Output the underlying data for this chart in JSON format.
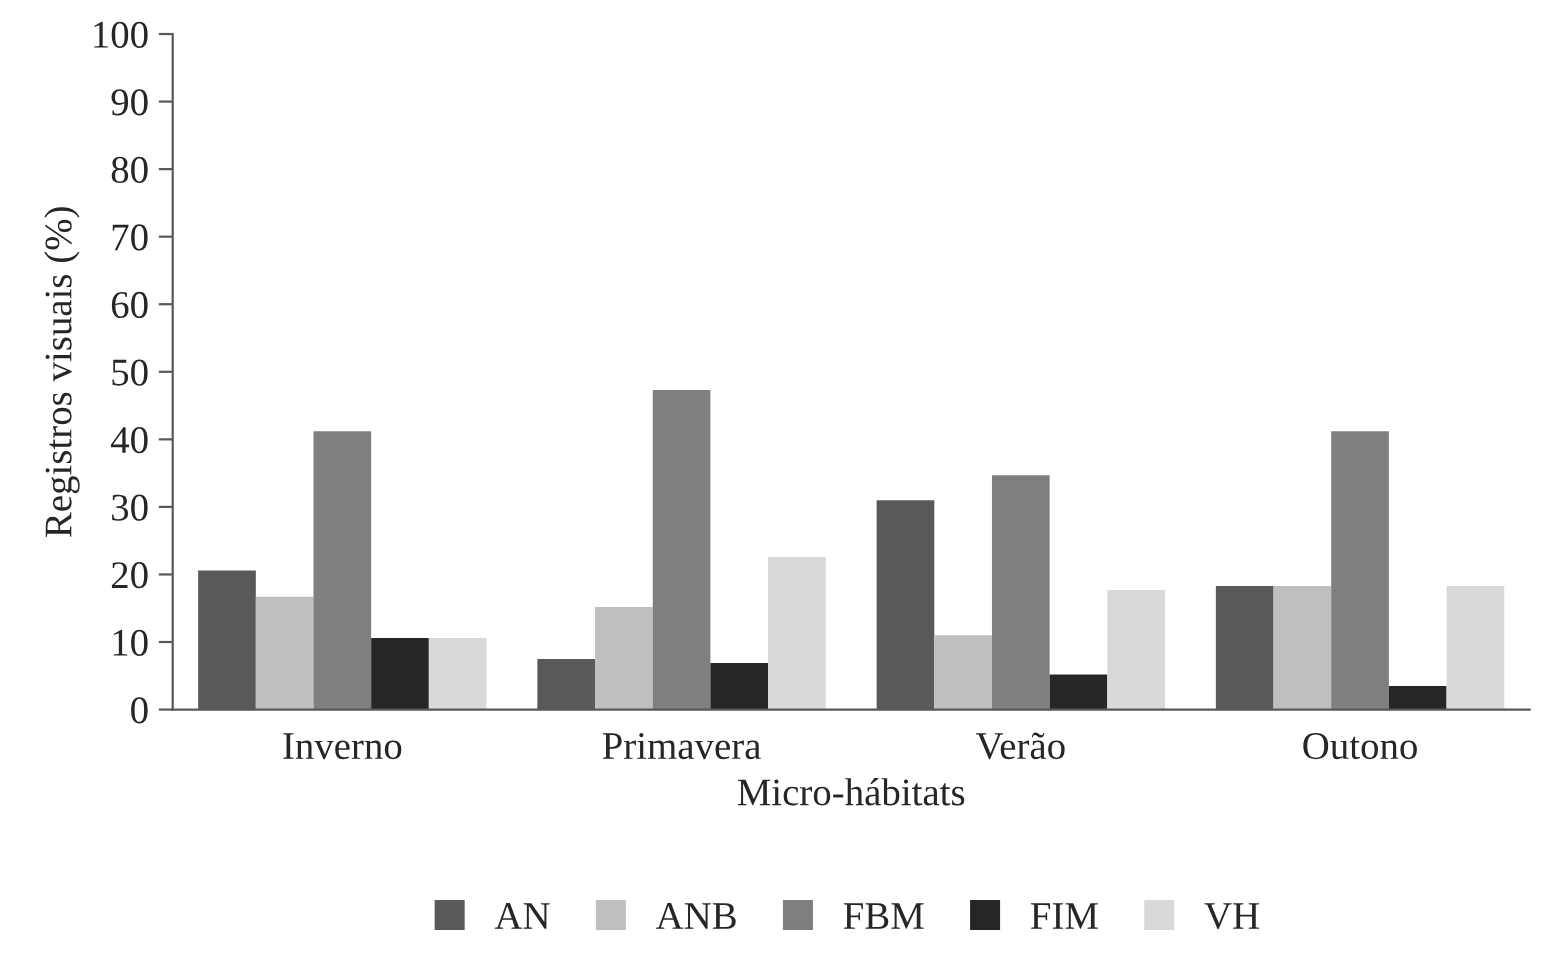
{
  "chart_data": {
    "type": "bar",
    "xlabel": "Micro-hábitats",
    "ylabel": "Registros visuais (%)",
    "categories": [
      "Inverno",
      "Primavera",
      "Verão",
      "Outono"
    ],
    "series": [
      {
        "name": "AN",
        "color": "#595959",
        "values": [
          20.6,
          7.5,
          31.0,
          18.3
        ]
      },
      {
        "name": "ANB",
        "color": "#bfbfbf",
        "values": [
          16.7,
          15.2,
          11.0,
          18.3
        ]
      },
      {
        "name": "FBM",
        "color": "#7f7f7f",
        "values": [
          41.2,
          47.3,
          34.7,
          41.2
        ]
      },
      {
        "name": "FIM",
        "color": "#262626",
        "values": [
          10.6,
          6.9,
          5.2,
          3.5
        ]
      },
      {
        "name": "VH",
        "color": "#d9d9d9",
        "values": [
          10.6,
          22.6,
          17.7,
          18.3
        ]
      }
    ],
    "ylim": [
      0,
      100
    ],
    "yticks": [
      0,
      10,
      20,
      30,
      40,
      50,
      60,
      70,
      80,
      90,
      100
    ],
    "grid": false,
    "legend": "bottom"
  }
}
